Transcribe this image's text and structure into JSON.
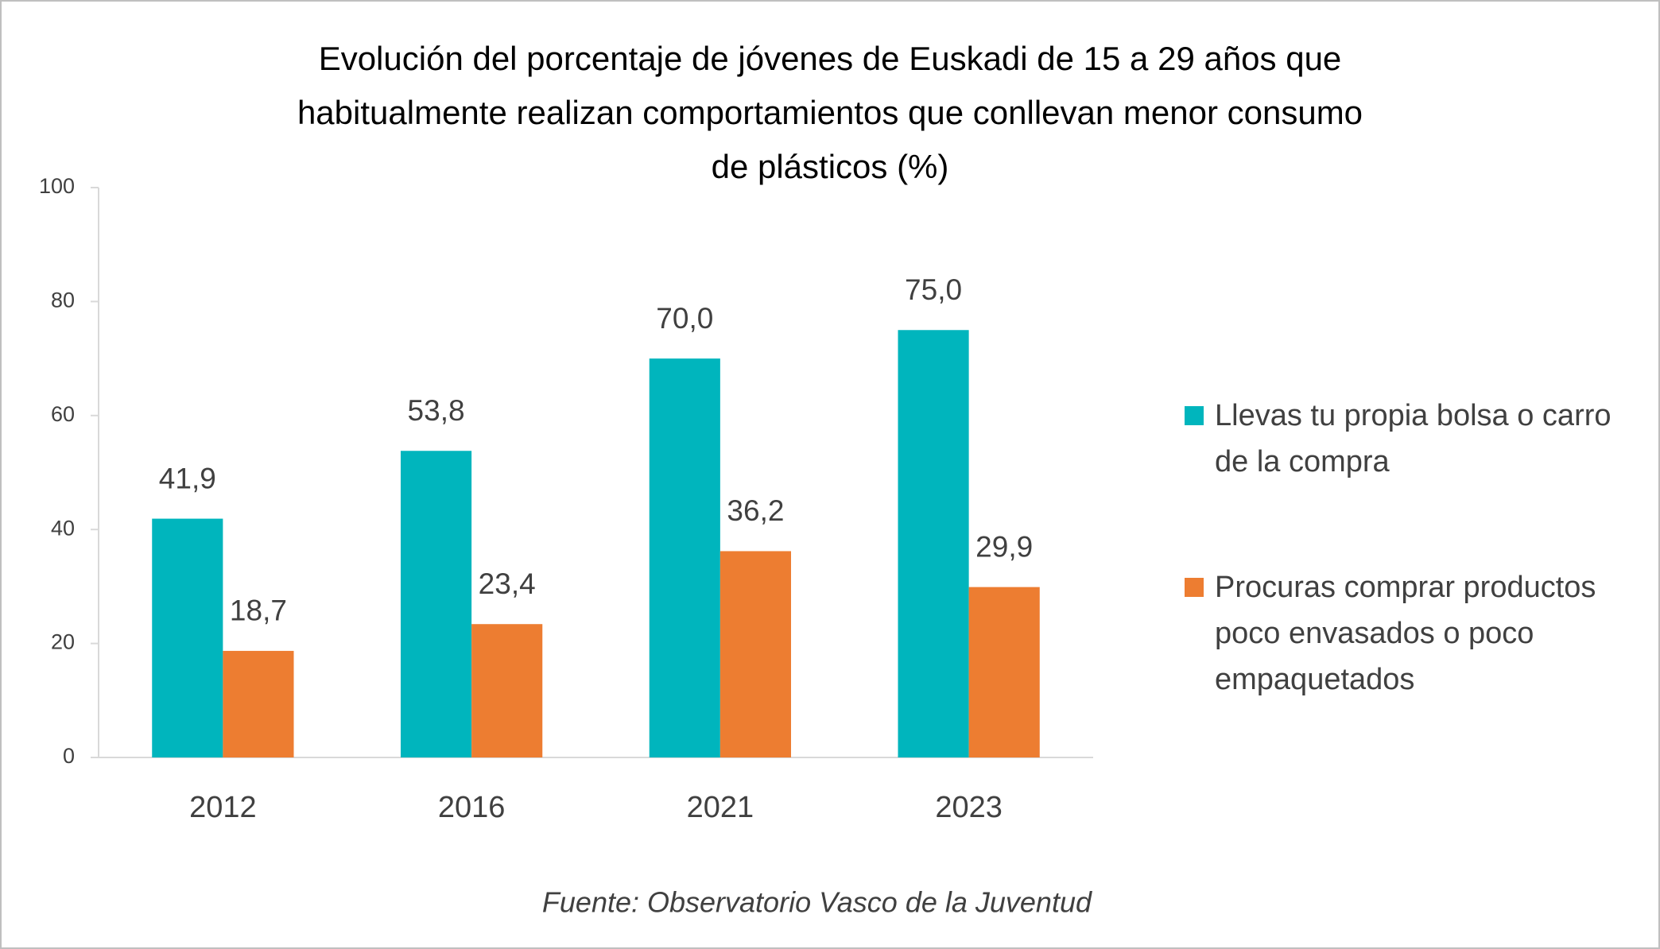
{
  "chart_data": {
    "type": "bar",
    "title": [
      "Evolución del porcentaje de jóvenes de Euskadi de 15 a 29 años que",
      "habitualmente realizan comportamientos que conllevan menor consumo",
      "de plásticos (%)"
    ],
    "categories": [
      "2012",
      "2016",
      "2021",
      "2023"
    ],
    "series": [
      {
        "name": "Llevas tu propia bolsa o carro de la compra",
        "color": "#00b5bd",
        "values": [
          41.9,
          53.8,
          70.0,
          75.0
        ],
        "value_labels": [
          "41,9",
          "53,8",
          "70,0",
          "75,0"
        ]
      },
      {
        "name": "Procuras comprar productos poco envasados o poco empaquetados",
        "color": "#ed7d31",
        "values": [
          18.7,
          23.4,
          36.2,
          29.9
        ],
        "value_labels": [
          "18,7",
          "23,4",
          "36,2",
          "29,9"
        ]
      }
    ],
    "ylim": [
      0,
      100
    ],
    "yticks": [
      0,
      20,
      40,
      60,
      80,
      100
    ],
    "grid": false,
    "legend": "right",
    "source": "Fuente: Observatorio Vasco de la Juventud"
  }
}
